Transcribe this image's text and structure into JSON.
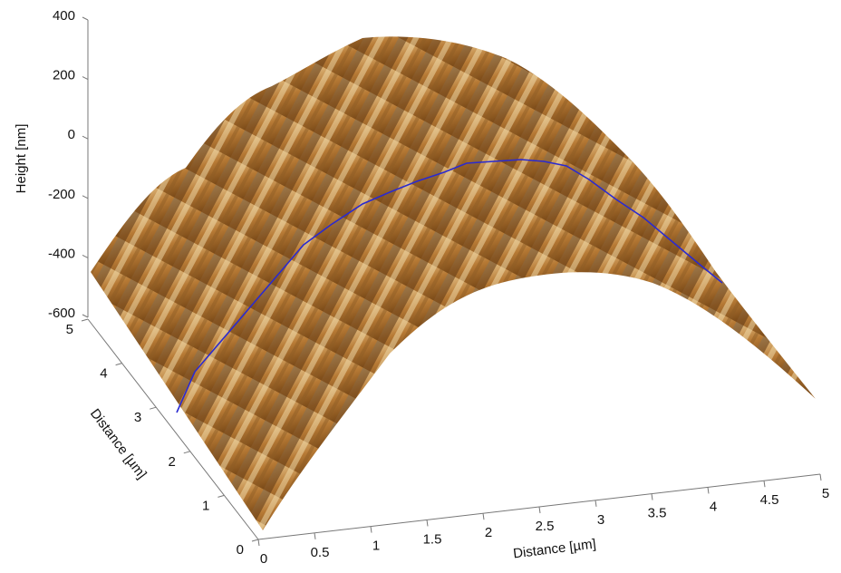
{
  "chart_data": {
    "type": "surface3d",
    "xlabel": "Distance [µm]",
    "ylabel": "Distance [µm]",
    "zlabel": "Height [nm]",
    "xlim": [
      0,
      5
    ],
    "xticks": [
      0,
      0.5,
      1,
      1.5,
      2,
      2.5,
      3,
      3.5,
      4,
      4.5,
      5
    ],
    "ylim": [
      0,
      5
    ],
    "yticks": [
      0,
      1,
      2,
      3,
      4,
      5
    ],
    "zlim": [
      -600,
      400
    ],
    "zticks": [
      -600,
      -400,
      -200,
      0,
      200,
      400
    ],
    "grid": false
  }
}
